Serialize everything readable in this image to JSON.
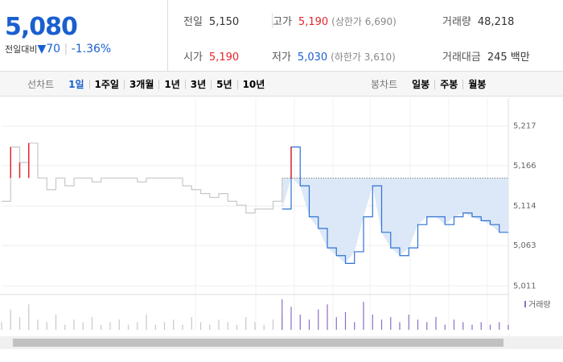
{
  "header": {
    "price": "5,080",
    "change_label": "전일대비",
    "change": "▼70",
    "change_pct": "-1.36%"
  },
  "summary": [
    {
      "label": "전일",
      "value": "5,150"
    },
    {
      "label": "고가",
      "value": "5,190",
      "note": "(상한가 6,690)"
    },
    {
      "label": "거래량",
      "value": "48,218"
    },
    {
      "label": "시가",
      "value": "5,190"
    },
    {
      "label": "저가",
      "value": "5,030",
      "note": "(하한가 3,610)"
    },
    {
      "label": "거래대금",
      "value": "245 백만"
    }
  ],
  "line_tabs": {
    "label": "선차트",
    "items": [
      "1일",
      "1주일",
      "3개월",
      "1년",
      "3년",
      "5년",
      "10년"
    ]
  },
  "candle_tabs": {
    "label": "봉차트",
    "items": [
      "일봉",
      "주봉",
      "월봉"
    ]
  },
  "chart_data": {
    "type": "line",
    "ylim": [
      5001,
      5253
    ],
    "yticks": [
      {
        "value": 5011,
        "label": "5,011"
      },
      {
        "value": 5063,
        "label": "5,063"
      },
      {
        "value": 5114,
        "label": "5,114"
      },
      {
        "value": 5166,
        "label": "5,166"
      },
      {
        "value": 5217,
        "label": "5,217"
      }
    ],
    "reference": 5150,
    "up_color": "#e4262c",
    "fill_color": "#dce8f8",
    "grid": true,
    "series": [
      {
        "color": "#c8c8c8",
        "values": [
          5120,
          5190,
          5170,
          5195,
          5150,
          5135,
          5150,
          5140,
          5150,
          5150,
          5145,
          5150,
          5150,
          5150,
          5150,
          5145,
          5150,
          5150,
          5150,
          5150,
          5140,
          5135,
          5130,
          5125,
          5130,
          5120,
          5115,
          5105,
          5110,
          5110,
          5120,
          5150,
          null,
          null,
          null,
          null,
          null,
          null,
          null,
          null,
          null,
          null,
          null,
          null,
          null,
          null,
          null,
          null,
          null,
          null,
          null,
          null,
          null,
          null,
          null,
          null,
          null
        ]
      },
      {
        "color": "#2f72d0",
        "values": [
          null,
          null,
          null,
          null,
          null,
          null,
          null,
          null,
          null,
          null,
          null,
          null,
          null,
          null,
          null,
          null,
          null,
          null,
          null,
          null,
          null,
          null,
          null,
          null,
          null,
          null,
          null,
          null,
          null,
          null,
          null,
          5110,
          5190,
          5140,
          5100,
          5085,
          5060,
          5050,
          5040,
          5055,
          5100,
          5140,
          5080,
          5060,
          5050,
          5060,
          5090,
          5100,
          5100,
          5090,
          5100,
          5105,
          5100,
          5095,
          5090,
          5080,
          5080
        ]
      }
    ],
    "volume": {
      "name": "거래량",
      "series": [
        {
          "color": "#c8c8c8",
          "values": [
            3,
            8,
            5,
            10,
            4,
            3,
            6,
            2,
            4,
            3,
            5,
            2,
            3,
            4,
            2,
            3,
            6,
            2,
            3,
            4,
            2,
            5,
            3,
            2,
            4,
            3,
            2,
            5,
            3,
            2,
            4,
            6,
            null,
            null,
            null,
            null,
            null,
            null,
            null,
            null,
            null,
            null,
            null,
            null,
            null,
            null,
            null,
            null,
            null,
            null,
            null,
            null,
            null,
            null,
            null,
            null,
            null
          ]
        },
        {
          "color": "#8e6cc7",
          "values": [
            null,
            null,
            null,
            null,
            null,
            null,
            null,
            null,
            null,
            null,
            null,
            null,
            null,
            null,
            null,
            null,
            null,
            null,
            null,
            null,
            null,
            null,
            null,
            null,
            null,
            null,
            null,
            null,
            null,
            null,
            null,
            12,
            9,
            6,
            4,
            8,
            10,
            5,
            7,
            3,
            11,
            6,
            4,
            5,
            3,
            6,
            4,
            3,
            5,
            2,
            4,
            3,
            2,
            3,
            2,
            3,
            2
          ]
        }
      ]
    }
  }
}
